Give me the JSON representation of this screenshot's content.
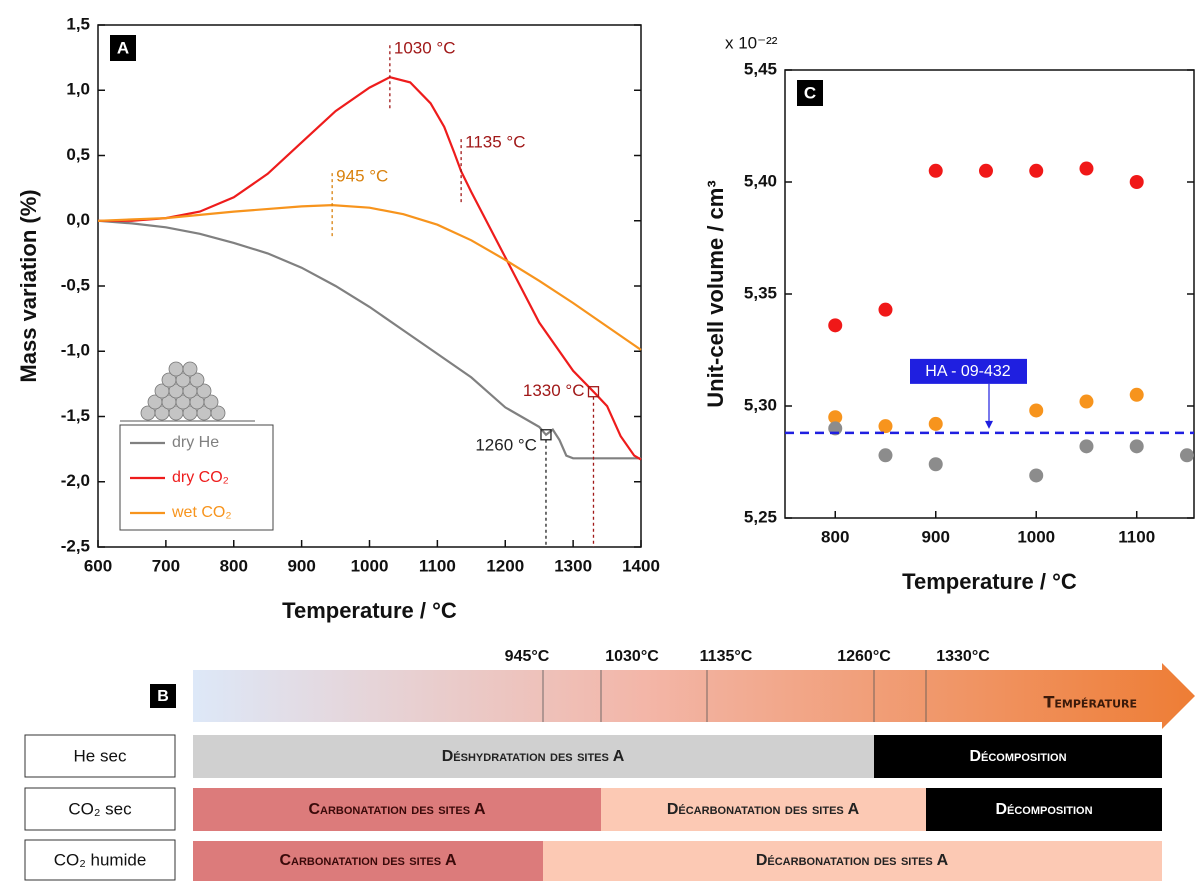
{
  "chart_data": [
    {
      "type": "line",
      "panel_label": "A",
      "x_label": "Temperature / °C",
      "y_label": "Mass variation (%)",
      "xlim": [
        600,
        1400
      ],
      "xticks": [
        600,
        700,
        800,
        900,
        1000,
        1100,
        1200,
        1300,
        1400
      ],
      "ylim": [
        -2.5,
        1.5
      ],
      "yticks": [
        {
          "value": 1.5,
          "label": "1,5"
        },
        {
          "value": 1,
          "label": "1,0"
        },
        {
          "value": 0.5,
          "label": "0,5"
        },
        {
          "value": 0,
          "label": "0,0"
        },
        {
          "value": -0.5,
          "label": "-0,5"
        },
        {
          "value": -1,
          "label": "-1,0"
        },
        {
          "value": -1.5,
          "label": "-1,5"
        },
        {
          "value": -2,
          "label": "-2,0"
        },
        {
          "value": -2.5,
          "label": "-2,5"
        }
      ],
      "legend": "lower left",
      "series": [
        {
          "name": "dry He",
          "color": "#808080",
          "x": [
            600,
            650,
            700,
            750,
            800,
            850,
            900,
            950,
            1000,
            1050,
            1100,
            1150,
            1200,
            1250,
            1260,
            1270,
            1280,
            1290,
            1300,
            1350,
            1400
          ],
          "values": [
            0,
            -0.02,
            -0.05,
            -0.1,
            -0.17,
            -0.25,
            -0.36,
            -0.5,
            -0.66,
            -0.84,
            -1.02,
            -1.2,
            -1.43,
            -1.58,
            -1.64,
            -1.6,
            -1.68,
            -1.8,
            -1.82,
            -1.82,
            -1.82
          ]
        },
        {
          "name": "dry CO₂",
          "color": "#ee1c1c",
          "x": [
            600,
            650,
            700,
            750,
            800,
            850,
            900,
            950,
            1000,
            1030,
            1060,
            1090,
            1110,
            1125,
            1135,
            1150,
            1200,
            1250,
            1300,
            1330,
            1350,
            1370,
            1390,
            1400
          ],
          "values": [
            0,
            0,
            0.02,
            0.07,
            0.18,
            0.36,
            0.6,
            0.84,
            1.02,
            1.1,
            1.06,
            0.9,
            0.72,
            0.52,
            0.38,
            0.22,
            -0.28,
            -0.78,
            -1.15,
            -1.31,
            -1.42,
            -1.65,
            -1.8,
            -1.83
          ]
        },
        {
          "name": "wet CO₂",
          "color": "#f7941d",
          "x": [
            600,
            700,
            800,
            900,
            945,
            1000,
            1050,
            1100,
            1150,
            1200,
            1250,
            1300,
            1350,
            1400
          ],
          "values": [
            0,
            0.02,
            0.07,
            0.11,
            0.12,
            0.1,
            0.05,
            -0.03,
            -0.15,
            -0.3,
            -0.46,
            -0.63,
            -0.81,
            -0.99
          ]
        }
      ],
      "annotations": [
        {
          "x": 1030,
          "y": 1.1,
          "label": "1030 °C",
          "color": "#a01818",
          "marker": "line"
        },
        {
          "x": 1135,
          "y": 0.38,
          "label": "1135 °C",
          "color": "#a01818",
          "marker": "line"
        },
        {
          "x": 945,
          "y": 0.12,
          "label": "945 °C",
          "color": "#d9820e",
          "marker": "line"
        },
        {
          "x": 1330,
          "y": -1.31,
          "label": "1330 °C",
          "color": "#a01818",
          "marker": "square"
        },
        {
          "x": 1260,
          "y": -1.64,
          "label": "1260 °C",
          "color": "#222222",
          "marker": "square"
        }
      ]
    },
    {
      "type": "scatter",
      "panel_label": "C",
      "x_label": "Temperature / °C",
      "y_label": "Unit-cell volume / cm³",
      "multiplier": "x 10⁻²²",
      "xlim": [
        750,
        1157
      ],
      "xticks": [
        800,
        900,
        1000,
        1100
      ],
      "ylim": [
        5.25,
        5.45
      ],
      "yticks": [
        {
          "value": 5.25,
          "label": "5,25"
        },
        {
          "value": 5.3,
          "label": "5,30"
        },
        {
          "value": 5.35,
          "label": "5,35"
        },
        {
          "value": 5.4,
          "label": "5,40"
        },
        {
          "value": 5.45,
          "label": "5,45"
        }
      ],
      "series": [
        {
          "color": "#f01818",
          "x": [
            800,
            850,
            900,
            950,
            1000,
            1050,
            1100
          ],
          "values": [
            5.336,
            5.343,
            5.405,
            5.405,
            5.405,
            5.406,
            5.4
          ]
        },
        {
          "color": "#f7941d",
          "x": [
            800,
            850,
            900,
            1000,
            1050,
            1100
          ],
          "values": [
            5.295,
            5.291,
            5.292,
            5.298,
            5.302,
            5.305
          ]
        },
        {
          "color": "#8c8c8c",
          "x": [
            800,
            850,
            900,
            1000,
            1050,
            1100,
            1150
          ],
          "values": [
            5.29,
            5.278,
            5.274,
            5.269,
            5.282,
            5.282,
            5.278
          ]
        }
      ],
      "reference": {
        "value": 5.288,
        "label": "HA - 09-432",
        "color": "#1f1fe0"
      }
    }
  ],
  "diagram": {
    "label": "B",
    "scale": [
      "945°C",
      "1030°C",
      "1135°C",
      "1260°C",
      "1330°C"
    ],
    "arrow_label": "Température",
    "rows": [
      {
        "label": "He sec",
        "phases": [
          "Déshydratation des sites A",
          "Décomposition"
        ]
      },
      {
        "label": "CO₂ sec",
        "phases": [
          "Carbonatation des sites A",
          "Décarbonatation des sites A",
          "Décomposition"
        ]
      },
      {
        "label": "CO₂ humide",
        "phases": [
          "Carbonatation des sites A",
          "Décarbonatation des sites A"
        ]
      }
    ]
  }
}
